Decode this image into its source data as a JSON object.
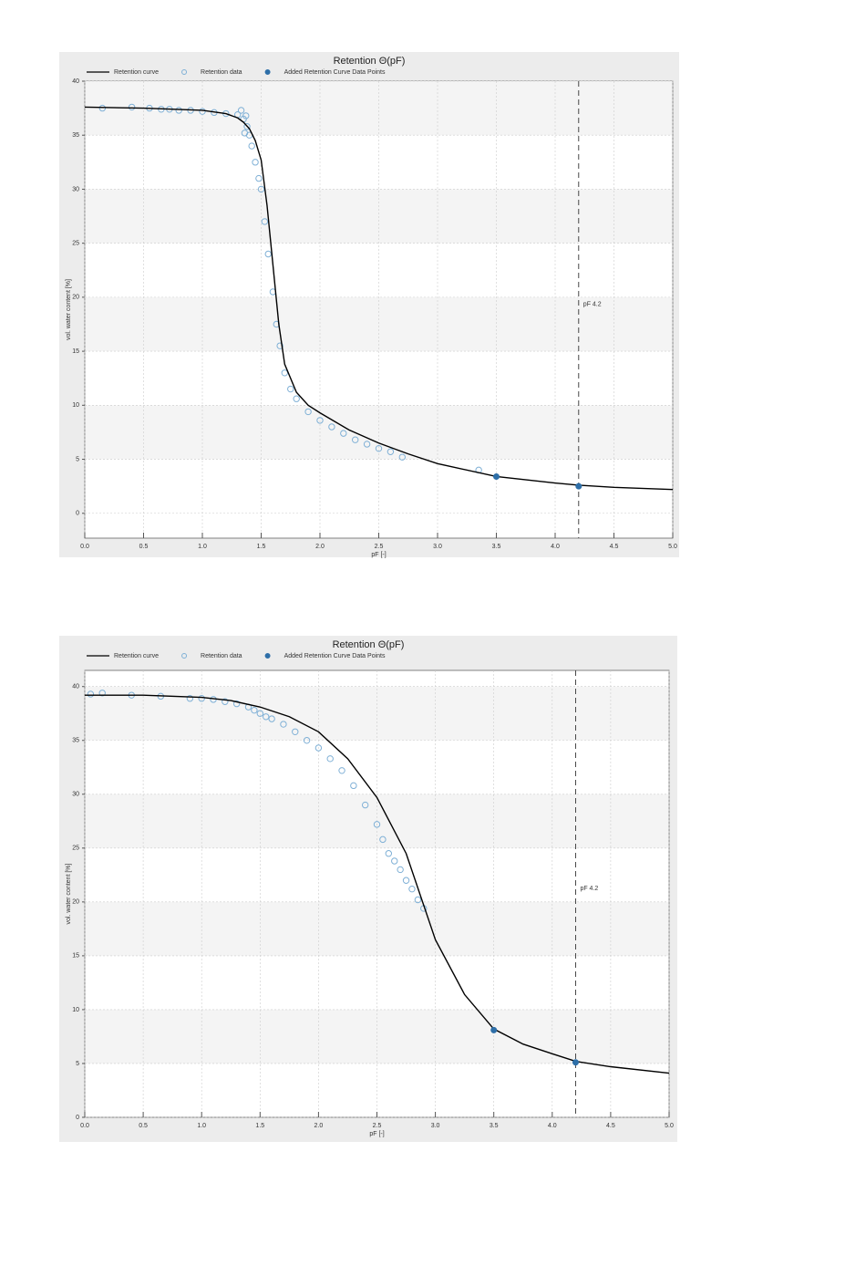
{
  "chart_data": [
    {
      "type": "line",
      "title": "Retention Θ(pF)",
      "xlabel": "pF [-]",
      "ylabel": "vol. water content [%]",
      "xlim": [
        0,
        5
      ],
      "ylim": [
        -2.3,
        40
      ],
      "xticks": [
        {
          "value": 0,
          "label": "0.0"
        },
        {
          "value": 0.5,
          "label": "0.5"
        },
        {
          "value": 1,
          "label": "1.0"
        },
        {
          "value": 1.5,
          "label": "1.5"
        },
        {
          "value": 2,
          "label": "2.0"
        },
        {
          "value": 2.5,
          "label": "2.5"
        },
        {
          "value": 3,
          "label": "3.0"
        },
        {
          "value": 3.5,
          "label": "3.5"
        },
        {
          "value": 4,
          "label": "4.0"
        },
        {
          "value": 4.5,
          "label": "4.5"
        },
        {
          "value": 5,
          "label": "5.0"
        }
      ],
      "yticks": [
        0,
        5,
        10,
        15,
        20,
        25,
        30,
        35,
        40
      ],
      "grid": true,
      "annotation": {
        "text": "pF 4.2",
        "x": 4.2
      },
      "series": [
        {
          "name": "Retention curve",
          "mode": "line",
          "color": "#000000",
          "x": [
            0,
            0.5,
            1.0,
            1.2,
            1.3,
            1.35,
            1.4,
            1.45,
            1.5,
            1.55,
            1.6,
            1.65,
            1.7,
            1.8,
            1.9,
            2.0,
            2.25,
            2.5,
            2.75,
            3.0,
            3.5,
            4.0,
            4.2,
            4.5,
            5.0
          ],
          "values": [
            37.6,
            37.5,
            37.3,
            37.0,
            36.6,
            36.2,
            35.6,
            34.5,
            32.7,
            28.5,
            23,
            17.5,
            13.8,
            11.2,
            10.0,
            9.3,
            7.7,
            6.5,
            5.5,
            4.6,
            3.4,
            2.8,
            2.6,
            2.4,
            2.2
          ]
        },
        {
          "name": "Retention data",
          "mode": "hollow",
          "color": "#7fb0d6",
          "x": [
            0.15,
            0.4,
            0.55,
            0.65,
            0.72,
            0.8,
            0.9,
            1.0,
            1.1,
            1.2,
            1.3,
            1.33,
            1.35,
            1.37,
            1.38,
            1.36,
            1.4,
            1.42,
            1.45,
            1.48,
            1.5,
            1.53,
            1.56,
            1.6,
            1.63,
            1.66,
            1.7,
            1.75,
            1.8,
            1.9,
            2.0,
            2.1,
            2.2,
            2.3,
            2.4,
            2.5,
            2.6,
            2.7,
            3.35
          ],
          "values": [
            37.5,
            37.6,
            37.5,
            37.4,
            37.4,
            37.3,
            37.3,
            37.2,
            37.1,
            37.0,
            36.9,
            37.3,
            36.5,
            36.8,
            35.8,
            35.2,
            35.0,
            34.0,
            32.5,
            31.0,
            30.0,
            27.0,
            24.0,
            20.5,
            17.5,
            15.5,
            13.0,
            11.5,
            10.6,
            9.4,
            8.6,
            8.0,
            7.4,
            6.8,
            6.4,
            6.0,
            5.7,
            5.2,
            4.0
          ]
        },
        {
          "name": "Added Retention Curve Data Points",
          "mode": "filled",
          "color": "#2e6fa8",
          "x": [
            3.5,
            4.2
          ],
          "values": [
            3.4,
            2.5
          ]
        }
      ]
    },
    {
      "type": "line",
      "title": "Retention Θ(pF)",
      "xlabel": "pF [-]",
      "ylabel": "vol. water content [%]",
      "xlim": [
        0,
        5
      ],
      "ylim": [
        0,
        41.5
      ],
      "xticks": [
        {
          "value": 0,
          "label": "0.0"
        },
        {
          "value": 0.5,
          "label": "0.5"
        },
        {
          "value": 1,
          "label": "1.0"
        },
        {
          "value": 1.5,
          "label": "1.5"
        },
        {
          "value": 2,
          "label": "2.0"
        },
        {
          "value": 2.5,
          "label": "2.5"
        },
        {
          "value": 3,
          "label": "3.0"
        },
        {
          "value": 3.5,
          "label": "3.5"
        },
        {
          "value": 4,
          "label": "4.0"
        },
        {
          "value": 4.5,
          "label": "4.5"
        },
        {
          "value": 5,
          "label": "5.0"
        }
      ],
      "yticks": [
        0,
        5,
        10,
        15,
        20,
        25,
        30,
        35,
        40
      ],
      "grid": true,
      "annotation": {
        "text": "pF 4.2",
        "x": 4.2
      },
      "series": [
        {
          "name": "Retention curve",
          "mode": "line",
          "color": "#000000",
          "x": [
            0,
            0.5,
            1.0,
            1.25,
            1.5,
            1.75,
            2.0,
            2.25,
            2.5,
            2.75,
            3.0,
            3.25,
            3.5,
            3.75,
            4.0,
            4.2,
            4.5,
            5.0
          ],
          "values": [
            39.2,
            39.2,
            39.0,
            38.7,
            38.1,
            37.2,
            35.8,
            33.3,
            29.7,
            24.5,
            16.5,
            11.4,
            8.2,
            6.8,
            5.9,
            5.2,
            4.7,
            4.1
          ]
        },
        {
          "name": "Retention data",
          "mode": "hollow",
          "color": "#7fb0d6",
          "x": [
            0.05,
            0.15,
            0.4,
            0.65,
            0.9,
            1.0,
            1.1,
            1.2,
            1.3,
            1.4,
            1.45,
            1.5,
            1.55,
            1.6,
            1.7,
            1.8,
            1.9,
            2.0,
            2.1,
            2.2,
            2.3,
            2.4,
            2.5,
            2.55,
            2.6,
            2.65,
            2.7,
            2.75,
            2.8,
            2.85,
            2.9
          ],
          "values": [
            39.3,
            39.4,
            39.2,
            39.1,
            38.9,
            38.9,
            38.8,
            38.6,
            38.4,
            38.1,
            37.8,
            37.5,
            37.2,
            37.0,
            36.5,
            35.8,
            35.0,
            34.3,
            33.3,
            32.2,
            30.8,
            29.0,
            27.2,
            25.8,
            24.5,
            23.8,
            23.0,
            22.0,
            21.2,
            20.2,
            19.4
          ]
        },
        {
          "name": "Added Retention Curve Data Points",
          "mode": "filled",
          "color": "#2e6fa8",
          "x": [
            3.5,
            4.2
          ],
          "values": [
            8.1,
            5.1
          ]
        }
      ]
    }
  ]
}
